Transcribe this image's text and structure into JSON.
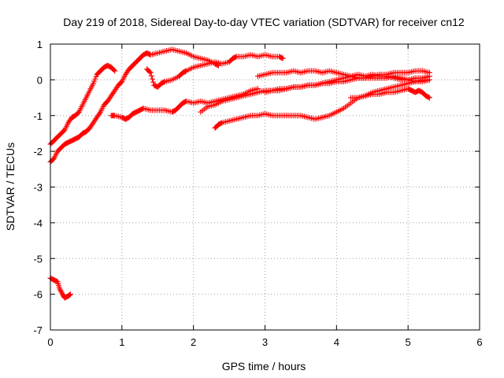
{
  "chart_data": {
    "type": "scatter",
    "title": "Day 219 of 2018, Sidereal Day-to-day VTEC variation (SDTVAR) for receiver cn12",
    "xlabel": "GPS time / hours",
    "ylabel": "SDTVAR / TECUs",
    "xlim": [
      0,
      6
    ],
    "ylim": [
      -7,
      1
    ],
    "xticks": [
      "0",
      "1",
      "2",
      "3",
      "4",
      "5",
      "6"
    ],
    "yticks": [
      "1",
      "0",
      "-1",
      "-2",
      "-3",
      "-4",
      "-5",
      "-6",
      "-7"
    ],
    "grid": true,
    "marker": "plus",
    "color": "#ff0000",
    "tracks": [
      [
        [
          0.0,
          -5.55
        ],
        [
          0.05,
          -5.6
        ],
        [
          0.1,
          -5.65
        ],
        [
          0.13,
          -5.85
        ],
        [
          0.17,
          -6.0
        ],
        [
          0.2,
          -6.1
        ],
        [
          0.25,
          -6.05
        ],
        [
          0.28,
          -6.0
        ]
      ],
      [
        [
          0.0,
          -1.8
        ],
        [
          0.05,
          -1.7
        ],
        [
          0.1,
          -1.6
        ],
        [
          0.15,
          -1.5
        ],
        [
          0.2,
          -1.4
        ],
        [
          0.25,
          -1.2
        ],
        [
          0.3,
          -1.05
        ],
        [
          0.35,
          -1.0
        ],
        [
          0.4,
          -0.9
        ],
        [
          0.45,
          -0.7
        ],
        [
          0.5,
          -0.5
        ],
        [
          0.55,
          -0.3
        ],
        [
          0.6,
          -0.1
        ],
        [
          0.65,
          0.15
        ],
        [
          0.7,
          0.25
        ],
        [
          0.75,
          0.35
        ],
        [
          0.8,
          0.4
        ],
        [
          0.85,
          0.35
        ],
        [
          0.9,
          0.25
        ]
      ],
      [
        [
          0.0,
          -2.3
        ],
        [
          0.05,
          -2.2
        ],
        [
          0.1,
          -2.0
        ],
        [
          0.15,
          -1.9
        ],
        [
          0.2,
          -1.8
        ],
        [
          0.25,
          -1.75
        ],
        [
          0.3,
          -1.7
        ],
        [
          0.35,
          -1.65
        ],
        [
          0.4,
          -1.6
        ],
        [
          0.45,
          -1.5
        ],
        [
          0.5,
          -1.45
        ],
        [
          0.55,
          -1.35
        ],
        [
          0.6,
          -1.2
        ],
        [
          0.65,
          -1.05
        ],
        [
          0.7,
          -0.9
        ],
        [
          0.75,
          -0.7
        ],
        [
          0.8,
          -0.6
        ],
        [
          0.85,
          -0.45
        ],
        [
          0.9,
          -0.3
        ],
        [
          0.95,
          -0.15
        ],
        [
          1.0,
          -0.05
        ],
        [
          1.05,
          0.15
        ],
        [
          1.1,
          0.3
        ],
        [
          1.15,
          0.4
        ],
        [
          1.2,
          0.5
        ],
        [
          1.25,
          0.6
        ],
        [
          1.3,
          0.7
        ],
        [
          1.35,
          0.75
        ],
        [
          1.4,
          0.7
        ],
        [
          1.5,
          0.75
        ],
        [
          1.6,
          0.8
        ],
        [
          1.7,
          0.85
        ],
        [
          1.8,
          0.8
        ],
        [
          1.9,
          0.75
        ],
        [
          2.0,
          0.65
        ],
        [
          2.1,
          0.6
        ],
        [
          2.2,
          0.55
        ],
        [
          2.3,
          0.45
        ],
        [
          2.35,
          0.4
        ]
      ],
      [
        [
          0.85,
          -1.0
        ],
        [
          0.9,
          -1.0
        ],
        [
          1.0,
          -1.05
        ],
        [
          1.05,
          -1.1
        ],
        [
          1.1,
          -1.05
        ],
        [
          1.15,
          -0.95
        ],
        [
          1.2,
          -0.9
        ],
        [
          1.25,
          -0.85
        ],
        [
          1.3,
          -0.8
        ],
        [
          1.4,
          -0.85
        ],
        [
          1.5,
          -0.85
        ],
        [
          1.6,
          -0.85
        ],
        [
          1.7,
          -0.9
        ],
        [
          1.75,
          -0.85
        ],
        [
          1.8,
          -0.75
        ],
        [
          1.85,
          -0.65
        ],
        [
          1.9,
          -0.6
        ],
        [
          2.0,
          -0.65
        ],
        [
          2.1,
          -0.6
        ],
        [
          2.2,
          -0.65
        ],
        [
          2.3,
          -0.6
        ],
        [
          2.4,
          -0.55
        ],
        [
          2.5,
          -0.5
        ],
        [
          2.6,
          -0.45
        ],
        [
          2.7,
          -0.4
        ],
        [
          2.8,
          -0.3
        ],
        [
          2.9,
          -0.25
        ]
      ],
      [
        [
          1.35,
          0.3
        ],
        [
          1.4,
          0.2
        ],
        [
          1.45,
          -0.15
        ],
        [
          1.5,
          -0.2
        ],
        [
          1.55,
          -0.1
        ],
        [
          1.6,
          -0.05
        ],
        [
          1.7,
          0.0
        ],
        [
          1.8,
          0.1
        ],
        [
          1.85,
          0.2
        ],
        [
          1.9,
          0.25
        ],
        [
          2.0,
          0.35
        ],
        [
          2.1,
          0.4
        ],
        [
          2.2,
          0.45
        ],
        [
          2.3,
          0.5
        ],
        [
          2.4,
          0.45
        ],
        [
          2.5,
          0.5
        ],
        [
          2.55,
          0.6
        ],
        [
          2.6,
          0.65
        ],
        [
          2.7,
          0.65
        ],
        [
          2.8,
          0.7
        ],
        [
          2.9,
          0.65
        ],
        [
          3.0,
          0.7
        ],
        [
          3.1,
          0.65
        ],
        [
          3.2,
          0.65
        ],
        [
          3.25,
          0.6
        ]
      ],
      [
        [
          2.1,
          -0.9
        ],
        [
          2.2,
          -0.75
        ],
        [
          2.3,
          -0.7
        ],
        [
          2.4,
          -0.6
        ],
        [
          2.5,
          -0.55
        ],
        [
          2.6,
          -0.5
        ],
        [
          2.7,
          -0.45
        ],
        [
          2.8,
          -0.4
        ],
        [
          2.9,
          -0.35
        ],
        [
          3.0,
          -0.3
        ],
        [
          3.1,
          -0.3
        ],
        [
          3.2,
          -0.25
        ],
        [
          3.3,
          -0.25
        ],
        [
          3.4,
          -0.2
        ],
        [
          3.5,
          -0.2
        ],
        [
          3.6,
          -0.15
        ],
        [
          3.7,
          -0.15
        ],
        [
          3.8,
          -0.1
        ],
        [
          3.9,
          -0.1
        ],
        [
          4.0,
          -0.05
        ],
        [
          4.1,
          -0.05
        ],
        [
          4.2,
          0.0
        ],
        [
          4.3,
          0.05
        ],
        [
          4.4,
          0.05
        ],
        [
          4.5,
          0.1
        ],
        [
          4.6,
          0.15
        ],
        [
          4.7,
          0.15
        ],
        [
          4.8,
          0.2
        ],
        [
          4.9,
          0.2
        ],
        [
          5.0,
          0.2
        ],
        [
          5.1,
          0.25
        ],
        [
          5.2,
          0.25
        ],
        [
          5.3,
          0.2
        ]
      ],
      [
        [
          2.3,
          -1.35
        ],
        [
          2.35,
          -1.25
        ],
        [
          2.4,
          -1.2
        ],
        [
          2.5,
          -1.15
        ],
        [
          2.6,
          -1.1
        ],
        [
          2.7,
          -1.05
        ],
        [
          2.8,
          -1.0
        ],
        [
          2.9,
          -1.0
        ],
        [
          3.0,
          -0.95
        ],
        [
          3.1,
          -1.0
        ],
        [
          3.2,
          -1.0
        ],
        [
          3.3,
          -1.0
        ],
        [
          3.4,
          -1.0
        ],
        [
          3.5,
          -1.0
        ],
        [
          3.6,
          -1.05
        ],
        [
          3.7,
          -1.1
        ],
        [
          3.8,
          -1.05
        ],
        [
          3.9,
          -1.0
        ],
        [
          4.0,
          -0.9
        ],
        [
          4.1,
          -0.8
        ],
        [
          4.2,
          -0.65
        ],
        [
          4.3,
          -0.5
        ],
        [
          4.4,
          -0.45
        ],
        [
          4.5,
          -0.35
        ],
        [
          4.6,
          -0.3
        ],
        [
          4.7,
          -0.25
        ],
        [
          4.8,
          -0.2
        ],
        [
          4.9,
          -0.15
        ],
        [
          5.0,
          -0.1
        ],
        [
          5.1,
          -0.05
        ],
        [
          5.2,
          -0.05
        ],
        [
          5.3,
          0.0
        ]
      ],
      [
        [
          2.9,
          0.1
        ],
        [
          3.0,
          0.15
        ],
        [
          3.1,
          0.2
        ],
        [
          3.2,
          0.2
        ],
        [
          3.3,
          0.2
        ],
        [
          3.4,
          0.25
        ],
        [
          3.5,
          0.2
        ],
        [
          3.6,
          0.25
        ],
        [
          3.7,
          0.25
        ],
        [
          3.8,
          0.2
        ],
        [
          3.9,
          0.25
        ],
        [
          4.0,
          0.2
        ],
        [
          4.1,
          0.15
        ],
        [
          4.2,
          0.1
        ],
        [
          4.3,
          0.05
        ],
        [
          4.4,
          0.05
        ],
        [
          4.5,
          0.05
        ],
        [
          4.6,
          0.05
        ],
        [
          4.7,
          0.05
        ],
        [
          4.8,
          0.1
        ],
        [
          4.9,
          0.05
        ],
        [
          5.0,
          0.0
        ],
        [
          5.1,
          -0.05
        ],
        [
          5.2,
          0.0
        ],
        [
          5.3,
          0.0
        ]
      ],
      [
        [
          3.0,
          -0.35
        ],
        [
          3.1,
          -0.3
        ],
        [
          3.2,
          -0.3
        ],
        [
          3.3,
          -0.25
        ],
        [
          3.4,
          -0.2
        ],
        [
          3.5,
          -0.2
        ],
        [
          3.6,
          -0.15
        ],
        [
          3.7,
          -0.15
        ],
        [
          3.8,
          -0.1
        ],
        [
          3.9,
          -0.05
        ],
        [
          4.0,
          0.0
        ],
        [
          4.1,
          0.05
        ],
        [
          4.2,
          0.1
        ],
        [
          4.3,
          0.15
        ],
        [
          4.4,
          0.1
        ],
        [
          4.5,
          0.15
        ],
        [
          4.6,
          0.1
        ],
        [
          4.7,
          0.1
        ],
        [
          4.8,
          0.05
        ],
        [
          4.9,
          0.0
        ],
        [
          5.0,
          0.0
        ],
        [
          5.1,
          0.05
        ],
        [
          5.2,
          0.05
        ],
        [
          5.3,
          0.1
        ]
      ],
      [
        [
          4.2,
          -0.5
        ],
        [
          4.3,
          -0.5
        ],
        [
          4.4,
          -0.45
        ],
        [
          4.5,
          -0.4
        ],
        [
          4.6,
          -0.4
        ],
        [
          4.7,
          -0.35
        ],
        [
          4.8,
          -0.35
        ],
        [
          4.9,
          -0.3
        ],
        [
          5.0,
          -0.25
        ],
        [
          5.05,
          -0.3
        ],
        [
          5.1,
          -0.35
        ],
        [
          5.15,
          -0.3
        ],
        [
          5.2,
          -0.35
        ],
        [
          5.25,
          -0.45
        ],
        [
          5.3,
          -0.5
        ]
      ]
    ]
  }
}
